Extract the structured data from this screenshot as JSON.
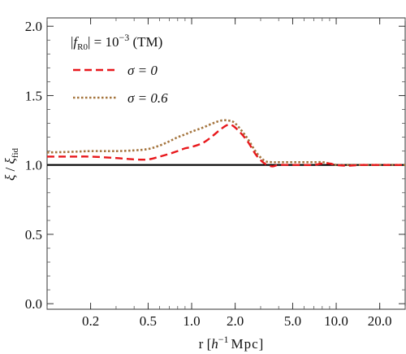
{
  "chart_data": {
    "type": "line",
    "xscale": "log",
    "xlim": [
      0.1,
      30.0
    ],
    "ylim": [
      -0.04,
      2.06
    ],
    "xlabel": {
      "prefix": "r [",
      "h": "h",
      "exp": "−1",
      "suffix": "Mpc]"
    },
    "ylabel": {
      "xi": "ξ",
      "slash": " / ",
      "xi2": "ξ",
      "sub": "fid"
    },
    "xticks": [
      {
        "value": 0.2,
        "label": "0.2"
      },
      {
        "value": 0.5,
        "label": "0.5"
      },
      {
        "value": 1.0,
        "label": "1.0"
      },
      {
        "value": 2.0,
        "label": "2.0"
      },
      {
        "value": 5.0,
        "label": "5.0"
      },
      {
        "value": 10.0,
        "label": "10.0"
      },
      {
        "value": 20.0,
        "label": "20.0"
      }
    ],
    "yticks": [
      {
        "value": 0.0,
        "label": "0.0"
      },
      {
        "value": 0.5,
        "label": "0.5"
      },
      {
        "value": 1.0,
        "label": "1.0"
      },
      {
        "value": 1.5,
        "label": "1.5"
      },
      {
        "value": 2.0,
        "label": "2.0"
      }
    ],
    "reference_line": {
      "y": 1.0,
      "color": "#000000"
    },
    "legend": {
      "placement": "top-left",
      "header": {
        "bar": "|",
        "f": "f",
        "sub": "R0",
        "mid": "| = 10",
        "exp": "−3",
        "tail": " (TM)"
      }
    },
    "series": [
      {
        "name": "σ = 0",
        "color": "#e8171b",
        "style": "dashed",
        "x": [
          0.1,
          0.15,
          0.2,
          0.3,
          0.4,
          0.5,
          0.6,
          0.7,
          0.8,
          0.9,
          1.0,
          1.2,
          1.4,
          1.6,
          1.8,
          2.0,
          2.4,
          2.8,
          3.2,
          3.6,
          4.0,
          5.0,
          6.0,
          7.0,
          8.0,
          9.0,
          10.0,
          12.0,
          15.0,
          20.0,
          25.0,
          30.0
        ],
        "values": [
          1.06,
          1.06,
          1.06,
          1.05,
          1.04,
          1.04,
          1.06,
          1.08,
          1.1,
          1.12,
          1.13,
          1.16,
          1.21,
          1.26,
          1.29,
          1.27,
          1.18,
          1.07,
          1.01,
          0.99,
          1.0,
          1.0,
          1.0,
          1.0,
          1.01,
          1.01,
          1.0,
          0.995,
          1.0,
          1.0,
          1.0,
          1.0
        ]
      },
      {
        "name": "σ = 0.6",
        "color": "#a4743d",
        "style": "dotted",
        "x": [
          0.1,
          0.15,
          0.2,
          0.3,
          0.4,
          0.5,
          0.6,
          0.7,
          0.8,
          0.9,
          1.0,
          1.2,
          1.4,
          1.6,
          1.8,
          2.0,
          2.4,
          2.8,
          3.2,
          3.6,
          4.0,
          5.0,
          6.0,
          7.0,
          8.0,
          9.0,
          10.0,
          12.0,
          15.0,
          20.0,
          25.0,
          30.0
        ],
        "values": [
          1.09,
          1.095,
          1.1,
          1.1,
          1.105,
          1.115,
          1.14,
          1.17,
          1.2,
          1.22,
          1.24,
          1.27,
          1.3,
          1.32,
          1.32,
          1.3,
          1.2,
          1.09,
          1.03,
          1.02,
          1.02,
          1.02,
          1.02,
          1.02,
          1.02,
          1.01,
          1.0,
          1.0,
          1.0,
          1.0,
          1.0,
          1.0
        ]
      }
    ]
  }
}
